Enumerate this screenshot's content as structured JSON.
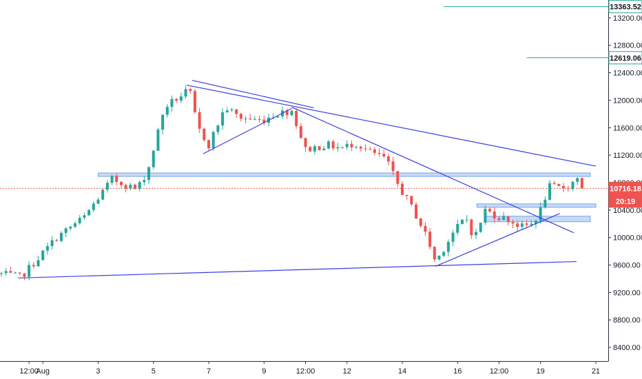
{
  "chart_data": {
    "type": "candlestick",
    "instrument_hint": "BTC price, 4h candles (August)",
    "x_ticks": [
      {
        "label": "12:00",
        "day": 0.5
      },
      {
        "label": "Aug",
        "day": 1
      },
      {
        "label": "3",
        "day": 3
      },
      {
        "label": "5",
        "day": 5
      },
      {
        "label": "7",
        "day": 7
      },
      {
        "label": "9",
        "day": 9
      },
      {
        "label": "12:00",
        "day": 10.5
      },
      {
        "label": "12",
        "day": 12
      },
      {
        "label": "14",
        "day": 14
      },
      {
        "label": "16",
        "day": 16
      },
      {
        "label": "12:00",
        "day": 17.5
      },
      {
        "label": "19",
        "day": 19
      },
      {
        "label": "21",
        "day": 21
      }
    ],
    "y_ticks": [
      "8400.00",
      "8800.00",
      "9200.00",
      "9600.00",
      "10000.00",
      "10400.00",
      "10800.00",
      "11200.00",
      "11600.00",
      "12000.00",
      "12400.00",
      "12800.00",
      "13200.00"
    ],
    "ylim": [
      8200,
      13460
    ],
    "xlim": [
      -0.55,
      21.45
    ],
    "price_tags": [
      {
        "label": "13363.52",
        "value": 13363.52,
        "kind": "level",
        "color": "#26a69a",
        "line_from_day": 15.5
      },
      {
        "label": "12619.06",
        "value": 12619.06,
        "kind": "level",
        "color": "#26a69a",
        "line_from_day": 18.5
      },
      {
        "label": "10716.18",
        "value": 10716.18,
        "kind": "last",
        "color": "#ef5350"
      },
      {
        "label": "20:19",
        "value": 10530,
        "kind": "countdown",
        "color": "#ef5350"
      }
    ],
    "last_price": 10716.18,
    "key_points": [
      {
        "day": -0.5,
        "price": 9470
      },
      {
        "day": 0.2,
        "price": 9420
      },
      {
        "day": 1.5,
        "price": 10000
      },
      {
        "day": 2.5,
        "price": 10300
      },
      {
        "day": 3.5,
        "price": 10850
      },
      {
        "day": 4.4,
        "price": 10700
      },
      {
        "day": 4.8,
        "price": 10980
      },
      {
        "day": 5.4,
        "price": 11900
      },
      {
        "day": 6.3,
        "price": 12150
      },
      {
        "day": 6.6,
        "price": 11600
      },
      {
        "day": 7.0,
        "price": 11350
      },
      {
        "day": 7.6,
        "price": 11900
      },
      {
        "day": 8.1,
        "price": 11750
      },
      {
        "day": 8.9,
        "price": 11700
      },
      {
        "day": 9.4,
        "price": 11800
      },
      {
        "day": 10.0,
        "price": 11850
      },
      {
        "day": 10.5,
        "price": 11280
      },
      {
        "day": 11.3,
        "price": 11350
      },
      {
        "day": 11.8,
        "price": 11300
      },
      {
        "day": 12.3,
        "price": 11380
      },
      {
        "day": 12.8,
        "price": 11250
      },
      {
        "day": 13.4,
        "price": 11150
      },
      {
        "day": 13.8,
        "price": 10800
      },
      {
        "day": 14.4,
        "price": 10400
      },
      {
        "day": 14.9,
        "price": 10000
      },
      {
        "day": 15.2,
        "price": 9640
      },
      {
        "day": 15.8,
        "price": 10050
      },
      {
        "day": 16.3,
        "price": 10300
      },
      {
        "day": 16.6,
        "price": 9980
      },
      {
        "day": 17.0,
        "price": 10400
      },
      {
        "day": 17.5,
        "price": 10300
      },
      {
        "day": 17.9,
        "price": 10250
      },
      {
        "day": 18.3,
        "price": 10150
      },
      {
        "day": 18.7,
        "price": 10200
      },
      {
        "day": 19.0,
        "price": 10400
      },
      {
        "day": 19.3,
        "price": 10740
      },
      {
        "day": 19.7,
        "price": 10720
      },
      {
        "day": 20.1,
        "price": 10760
      },
      {
        "day": 20.3,
        "price": 10900
      },
      {
        "day": 20.6,
        "price": 10716
      }
    ],
    "trendlines": [
      {
        "from": [
          0.1,
          9410
        ],
        "to": [
          20.3,
          9650
        ]
      },
      {
        "from": [
          6.4,
          12290
        ],
        "to": [
          10.8,
          11890
        ]
      },
      {
        "from": [
          6.8,
          11220
        ],
        "to": [
          10.0,
          11880
        ]
      },
      {
        "from": [
          6.2,
          12220
        ],
        "to": [
          21.0,
          11040
        ]
      },
      {
        "from": [
          10.0,
          11900
        ],
        "to": [
          20.2,
          10070
        ]
      },
      {
        "from": [
          15.2,
          9580
        ],
        "to": [
          19.7,
          10350
        ]
      }
    ],
    "zones": [
      {
        "from_day": 3.0,
        "to_day": 20.8,
        "low": 10890,
        "high": 10940
      },
      {
        "from_day": 16.7,
        "to_day": 21.0,
        "low": 10440,
        "high": 10490
      },
      {
        "from_day": 17.0,
        "to_day": 20.8,
        "low": 10230,
        "high": 10310
      }
    ],
    "colors": {
      "up": "#26a69a",
      "down": "#ef5350",
      "trendline": "#3a3ee0",
      "zone_fill": "#bcd3f5",
      "zone_stroke": "#7aa3e5",
      "axis_text": "#131722"
    }
  }
}
